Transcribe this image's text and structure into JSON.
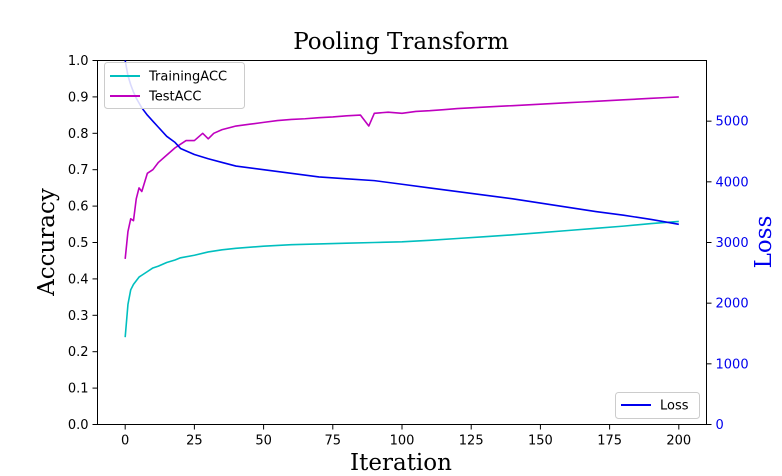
{
  "chart_data": {
    "type": "line",
    "title": "Pooling Transform",
    "xlabel": "Iteration",
    "ylabel_left": "Accuracy",
    "ylabel_right": "Loss",
    "xlim": [
      -10,
      210
    ],
    "ylim_left": [
      0,
      1.0
    ],
    "ylim_right": [
      0,
      6000
    ],
    "xticks": [
      0,
      25,
      50,
      75,
      100,
      125,
      150,
      175,
      200
    ],
    "yticks_left": [
      0.0,
      0.1,
      0.2,
      0.3,
      0.4,
      0.5,
      0.6,
      0.7,
      0.8,
      0.9,
      1.0
    ],
    "yticks_right": [
      0,
      1000,
      2000,
      3000,
      4000,
      5000
    ],
    "grid": false,
    "legend_left": {
      "placement": "top-left",
      "entries": [
        "TrainingACC",
        "TestACC"
      ]
    },
    "legend_right": {
      "placement": "bottom-right",
      "entries": [
        "Loss"
      ]
    },
    "series": [
      {
        "name": "TrainingACC",
        "axis": "left",
        "color": "#00bfbf",
        "x": [
          0,
          1,
          2,
          3,
          4,
          5,
          6,
          8,
          10,
          12,
          15,
          18,
          20,
          25,
          30,
          35,
          40,
          50,
          60,
          70,
          80,
          90,
          100,
          110,
          120,
          130,
          140,
          150,
          160,
          170,
          180,
          190,
          200
        ],
        "values": [
          0.24,
          0.33,
          0.37,
          0.385,
          0.395,
          0.405,
          0.41,
          0.42,
          0.43,
          0.435,
          0.445,
          0.452,
          0.458,
          0.465,
          0.474,
          0.48,
          0.484,
          0.49,
          0.494,
          0.496,
          0.498,
          0.5,
          0.502,
          0.506,
          0.511,
          0.516,
          0.521,
          0.527,
          0.533,
          0.539,
          0.545,
          0.552,
          0.558
        ]
      },
      {
        "name": "TestACC",
        "axis": "left",
        "color": "#bf00bf",
        "x": [
          0,
          1,
          2,
          3,
          4,
          5,
          6,
          8,
          10,
          12,
          15,
          18,
          20,
          22,
          25,
          28,
          30,
          32,
          35,
          40,
          45,
          50,
          55,
          60,
          65,
          70,
          75,
          80,
          85,
          88,
          90,
          95,
          100,
          105,
          110,
          115,
          120,
          125,
          130,
          135,
          140,
          145,
          150,
          155,
          160,
          165,
          170,
          175,
          180,
          185,
          190,
          195,
          200
        ],
        "values": [
          0.455,
          0.53,
          0.565,
          0.56,
          0.62,
          0.65,
          0.64,
          0.69,
          0.7,
          0.72,
          0.74,
          0.76,
          0.77,
          0.78,
          0.78,
          0.8,
          0.785,
          0.8,
          0.81,
          0.82,
          0.825,
          0.83,
          0.835,
          0.838,
          0.84,
          0.843,
          0.845,
          0.848,
          0.85,
          0.82,
          0.855,
          0.858,
          0.855,
          0.86,
          0.862,
          0.865,
          0.868,
          0.87,
          0.872,
          0.874,
          0.876,
          0.878,
          0.88,
          0.882,
          0.884,
          0.886,
          0.888,
          0.89,
          0.892,
          0.894,
          0.896,
          0.898,
          0.9
        ]
      },
      {
        "name": "Loss",
        "axis": "right",
        "color": "#0000ee",
        "x": [
          0,
          1,
          2,
          3,
          4,
          5,
          6,
          8,
          10,
          12,
          15,
          18,
          20,
          25,
          30,
          35,
          40,
          50,
          60,
          70,
          80,
          90,
          100,
          110,
          120,
          130,
          140,
          150,
          160,
          170,
          180,
          190,
          200
        ],
        "values": [
          6000,
          5750,
          5600,
          5480,
          5380,
          5300,
          5220,
          5100,
          5000,
          4900,
          4750,
          4650,
          4550,
          4450,
          4380,
          4320,
          4260,
          4200,
          4140,
          4080,
          4050,
          4020,
          3960,
          3900,
          3840,
          3780,
          3720,
          3650,
          3580,
          3510,
          3450,
          3380,
          3300
        ]
      }
    ]
  }
}
